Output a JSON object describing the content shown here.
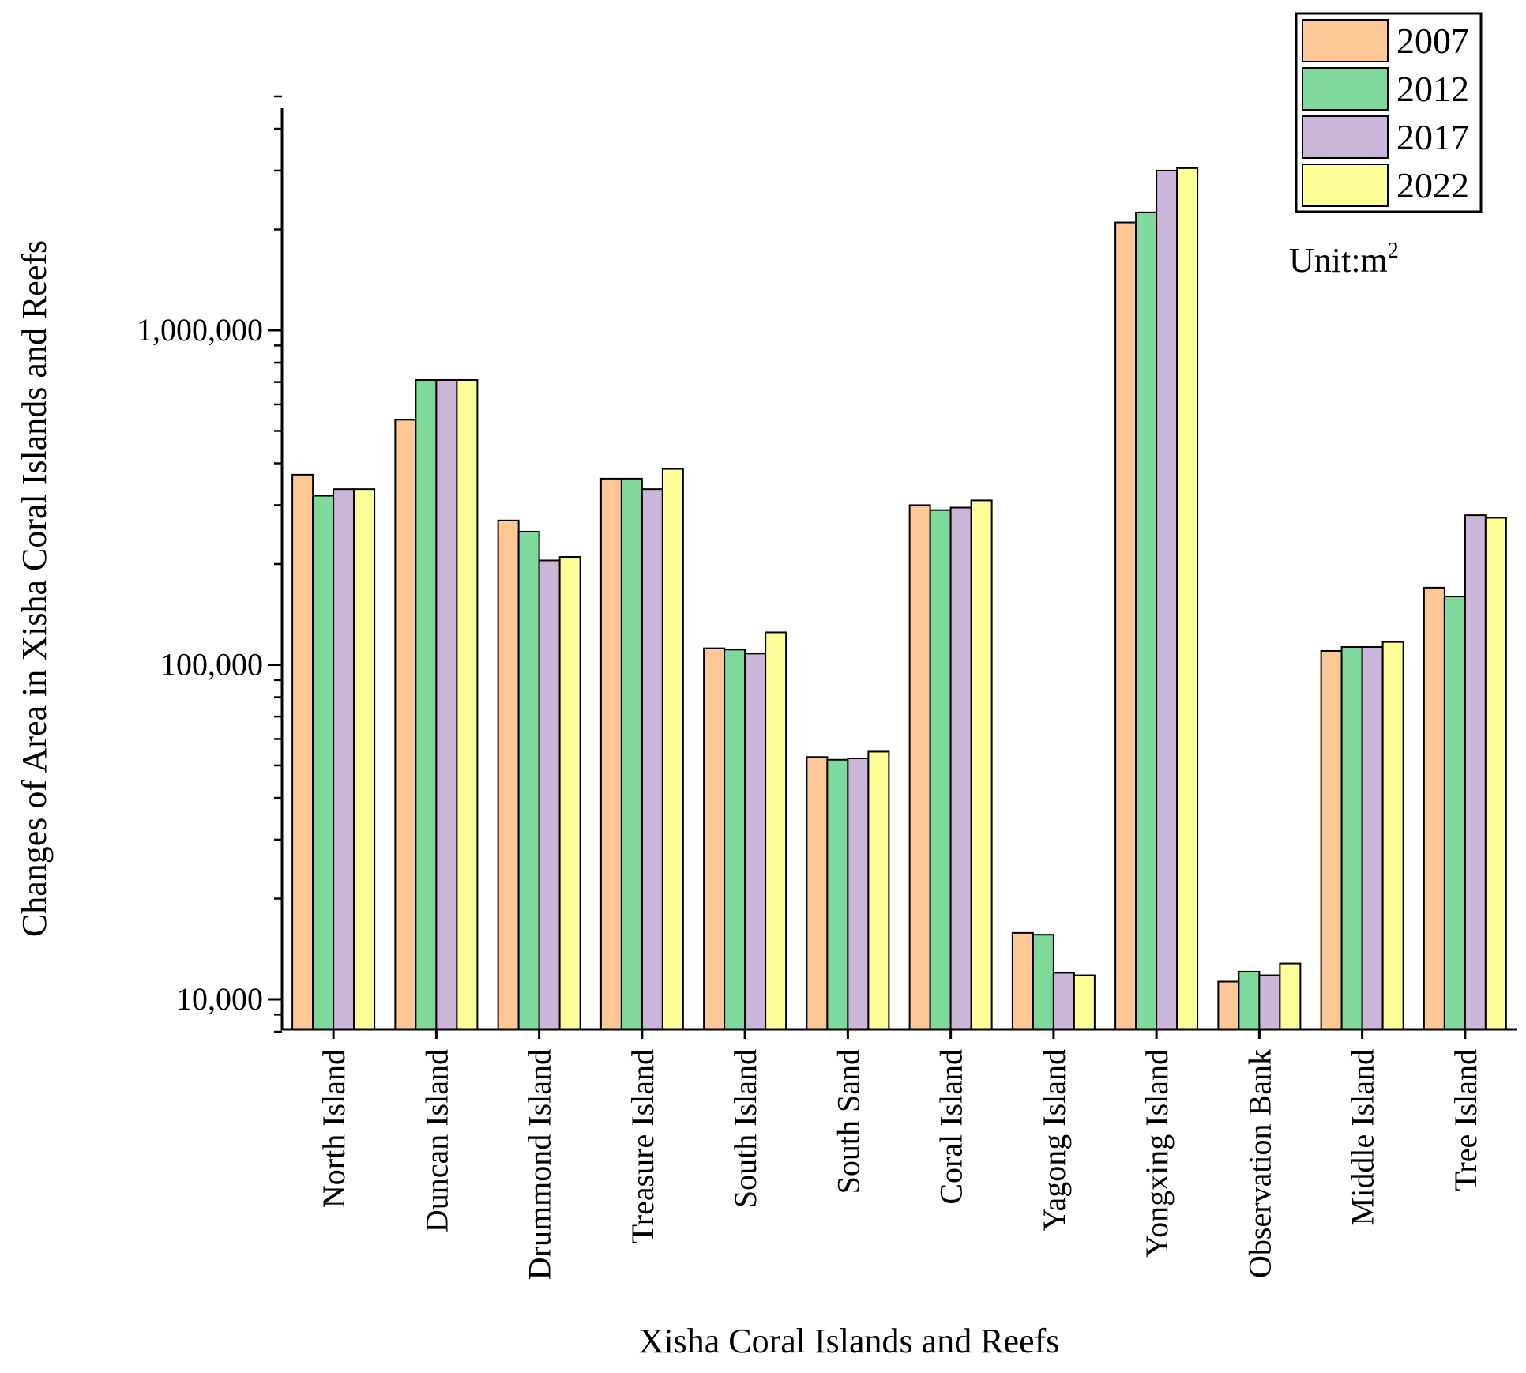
{
  "chart_data": {
    "type": "bar",
    "scale": "log",
    "xlabel": "Xisha Coral Islands and Reefs",
    "ylabel": "Changes of Area in Xisha Coral Islands and Reefs",
    "unit": {
      "prefix": "Unit:m",
      "sup": "2"
    },
    "ylim": [
      8000,
      5000000
    ],
    "yticks": [
      10000,
      100000,
      1000000
    ],
    "ytick_labels": [
      "10,000",
      "100,000",
      "1,000,000"
    ],
    "categories": [
      "North Island",
      "Duncan Island",
      "Drummond Island",
      "Treasure Island",
      "South Island",
      "South Sand",
      "Coral Island",
      "Yagong Island",
      "Yongxing Island",
      "Observation Bank",
      "Middle Island",
      "Tree Island"
    ],
    "series": [
      {
        "name": "2007",
        "color": "#FDC896",
        "values": [
          370000,
          540000,
          270000,
          360000,
          112000,
          53000,
          300000,
          15800,
          2100000,
          11300,
          110000,
          170000
        ]
      },
      {
        "name": "2012",
        "color": "#80D99C",
        "values": [
          320000,
          710000,
          250000,
          360000,
          111000,
          52000,
          290000,
          15600,
          2250000,
          12100,
          113000,
          160000
        ]
      },
      {
        "name": "2017",
        "color": "#CBB6D9",
        "values": [
          335000,
          710000,
          205000,
          335000,
          108000,
          52500,
          295000,
          12000,
          3000000,
          11800,
          113000,
          280000
        ]
      },
      {
        "name": "2022",
        "color": "#FEFE99",
        "values": [
          335000,
          710000,
          210000,
          385000,
          125000,
          55000,
          310000,
          11800,
          3050000,
          12800,
          117000,
          275000
        ]
      }
    ]
  }
}
